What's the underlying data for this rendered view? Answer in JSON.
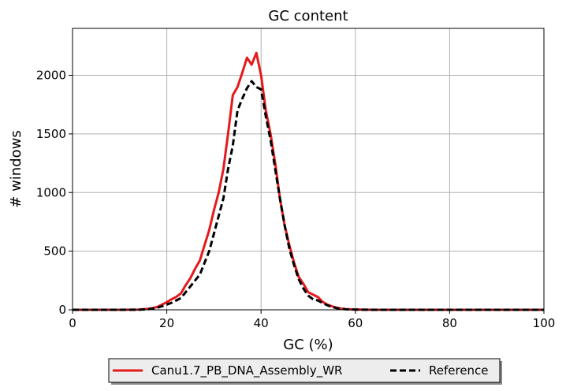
{
  "chart_data": {
    "type": "line",
    "title": "GC content",
    "xlabel": "GC (%)",
    "ylabel": "# windows",
    "xlim": [
      0,
      100
    ],
    "ylim": [
      0,
      2400
    ],
    "xticks": [
      0,
      20,
      40,
      60,
      80,
      100
    ],
    "yticks": [
      0,
      500,
      1000,
      1500,
      2000
    ],
    "grid": true,
    "legend_position": "bottom-center",
    "series": [
      {
        "name": "Canu1.7_PB_DNA_Assembly_WR",
        "color": "#e41a1c",
        "style": "solid",
        "x": [
          0,
          10,
          14,
          16,
          17,
          18,
          19,
          20,
          21,
          22,
          23,
          24,
          25,
          26,
          27,
          28,
          29,
          30,
          31,
          32,
          33,
          34,
          35,
          36,
          37,
          38,
          39,
          40,
          41,
          42,
          43,
          44,
          45,
          46,
          47,
          48,
          49,
          50,
          51,
          52,
          53,
          54,
          55,
          56,
          57,
          58,
          60,
          62,
          65,
          70,
          80,
          90,
          100
        ],
        "values": [
          0,
          0,
          2,
          8,
          15,
          25,
          45,
          65,
          90,
          110,
          140,
          210,
          270,
          350,
          420,
          550,
          680,
          850,
          1000,
          1200,
          1500,
          1830,
          1900,
          2020,
          2150,
          2090,
          2190,
          2000,
          1700,
          1500,
          1250,
          950,
          720,
          550,
          400,
          280,
          220,
          150,
          130,
          110,
          70,
          45,
          30,
          18,
          10,
          6,
          3,
          1,
          0,
          0,
          0,
          0,
          0
        ]
      },
      {
        "name": "Reference",
        "color": "#000000",
        "style": "dashed",
        "x": [
          0,
          10,
          14,
          16,
          17,
          18,
          19,
          20,
          21,
          22,
          23,
          24,
          25,
          26,
          27,
          28,
          29,
          30,
          31,
          32,
          33,
          34,
          35,
          36,
          37,
          38,
          39,
          40,
          41,
          42,
          43,
          44,
          45,
          46,
          47,
          48,
          49,
          50,
          51,
          52,
          53,
          54,
          55,
          56,
          57,
          58,
          60,
          62,
          65,
          70,
          80,
          90,
          100
        ],
        "values": [
          0,
          0,
          1,
          5,
          10,
          18,
          30,
          45,
          60,
          80,
          100,
          150,
          200,
          250,
          300,
          400,
          500,
          650,
          800,
          950,
          1200,
          1400,
          1700,
          1800,
          1890,
          1950,
          1900,
          1880,
          1650,
          1450,
          1200,
          950,
          720,
          520,
          380,
          260,
          180,
          120,
          90,
          80,
          60,
          40,
          25,
          15,
          8,
          4,
          2,
          1,
          0,
          0,
          0,
          0,
          0
        ]
      }
    ]
  }
}
